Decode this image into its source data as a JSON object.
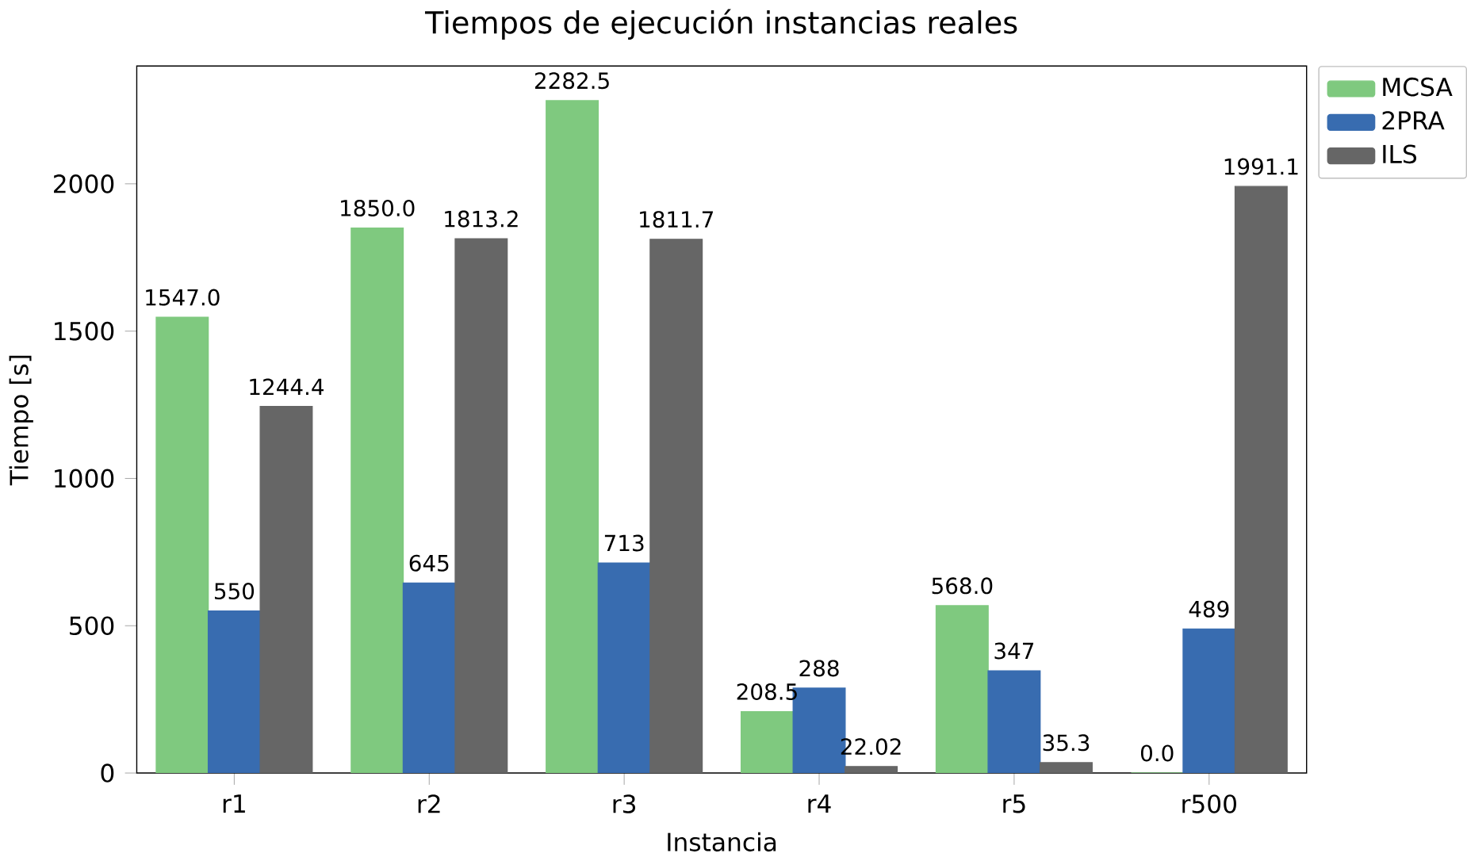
{
  "chart_data": {
    "type": "bar",
    "title": "Tiempos de ejecución instancias reales",
    "xlabel": "Instancia",
    "ylabel": "Tiempo [s]",
    "categories": [
      "r1",
      "r2",
      "r3",
      "r4",
      "r5",
      "r500"
    ],
    "series": [
      {
        "name": "MCSA",
        "color": "#7fc97f",
        "values": [
          1547.0,
          1850.0,
          2282.5,
          208.5,
          568.0,
          0.0
        ],
        "value_labels": [
          "1547.0",
          "1850.0",
          "2282.5",
          "208.5",
          "568.0",
          "0.0"
        ]
      },
      {
        "name": "2PRA",
        "color": "#386cb0",
        "values": [
          550,
          645,
          713,
          288,
          347,
          489
        ],
        "value_labels": [
          "550",
          "645",
          "713",
          "288",
          "347",
          "489"
        ]
      },
      {
        "name": "ILS",
        "color": "#666666",
        "values": [
          1244.4,
          1813.2,
          1811.7,
          22.02,
          35.3,
          1991.1
        ],
        "value_labels": [
          "1244.4",
          "1813.2",
          "1811.7",
          "22.02",
          "35.3",
          "1991.1"
        ]
      }
    ],
    "ylim": [
      0,
      2400
    ],
    "yticks": [
      0,
      500,
      1000,
      1500,
      2000
    ],
    "legend": "top right",
    "grid": false
  }
}
